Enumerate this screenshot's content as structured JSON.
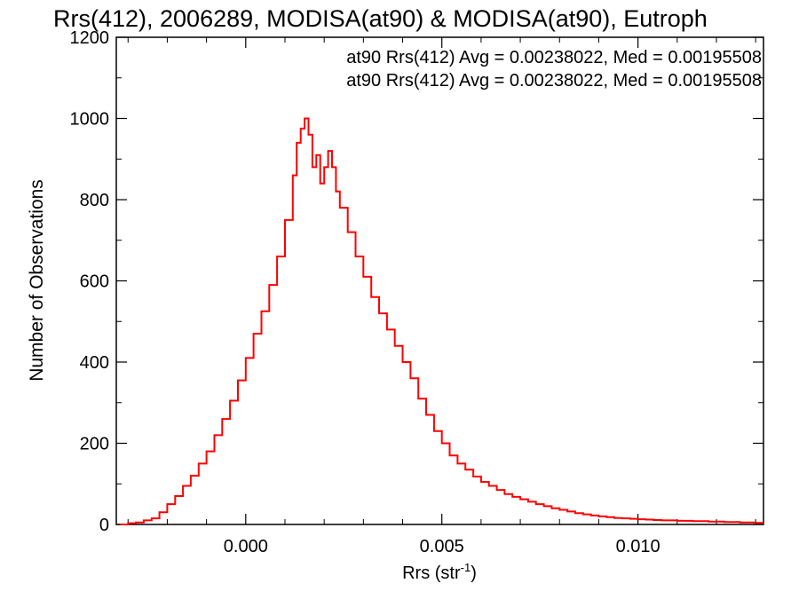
{
  "chart_data": {
    "type": "histogram",
    "title": "Rrs(412), 2006289, MODISA(at90) & MODISA(at90), Eutroph",
    "xlabel_main": "Rrs (str",
    "xlabel_sup": "-1",
    "xlabel_close": ")",
    "ylabel": "Number of Observations",
    "xlim": [
      -0.0033,
      0.0132
    ],
    "ylim": [
      0,
      1200
    ],
    "xticks": [
      0.0,
      0.005,
      0.01
    ],
    "xtick_labels": [
      "0.000",
      "0.005",
      "0.010"
    ],
    "yticks": [
      0,
      200,
      400,
      600,
      800,
      1000,
      1200
    ],
    "ytick_labels": [
      "0",
      "200",
      "400",
      "600",
      "800",
      "1000",
      "1200"
    ],
    "annotations": [
      {
        "text": "at90 Rrs(412) Avg = 0.00238022, Med = 0.00195508",
        "color": "#000000"
      },
      {
        "text": "at90 Rrs(412) Avg = 0.00238022, Med = 0.00195508",
        "color": "#ff0000"
      }
    ],
    "series": [
      {
        "color": "#ff0000",
        "points": [
          [
            -0.0032,
            0
          ],
          [
            -0.003,
            3
          ],
          [
            -0.0028,
            5
          ],
          [
            -0.0026,
            10
          ],
          [
            -0.0024,
            15
          ],
          [
            -0.0022,
            30
          ],
          [
            -0.002,
            50
          ],
          [
            -0.0018,
            70
          ],
          [
            -0.0016,
            95
          ],
          [
            -0.0014,
            120
          ],
          [
            -0.0012,
            150
          ],
          [
            -0.001,
            180
          ],
          [
            -0.0008,
            220
          ],
          [
            -0.0006,
            260
          ],
          [
            -0.0004,
            305
          ],
          [
            -0.0002,
            355
          ],
          [
            0.0,
            410
          ],
          [
            0.0002,
            470
          ],
          [
            0.0004,
            525
          ],
          [
            0.0006,
            590
          ],
          [
            0.0008,
            660
          ],
          [
            0.001,
            750
          ],
          [
            0.0012,
            860
          ],
          [
            0.0013,
            940
          ],
          [
            0.0014,
            975
          ],
          [
            0.0015,
            1000
          ],
          [
            0.0016,
            960
          ],
          [
            0.0017,
            880
          ],
          [
            0.0018,
            910
          ],
          [
            0.0019,
            840
          ],
          [
            0.002,
            880
          ],
          [
            0.0021,
            920
          ],
          [
            0.0022,
            880
          ],
          [
            0.0023,
            820
          ],
          [
            0.0024,
            780
          ],
          [
            0.0026,
            720
          ],
          [
            0.0028,
            660
          ],
          [
            0.003,
            610
          ],
          [
            0.0032,
            560
          ],
          [
            0.0034,
            520
          ],
          [
            0.0036,
            480
          ],
          [
            0.0038,
            440
          ],
          [
            0.004,
            400
          ],
          [
            0.0042,
            360
          ],
          [
            0.0044,
            310
          ],
          [
            0.0046,
            270
          ],
          [
            0.0048,
            230
          ],
          [
            0.005,
            200
          ],
          [
            0.0052,
            170
          ],
          [
            0.0054,
            150
          ],
          [
            0.0056,
            135
          ],
          [
            0.0058,
            118
          ],
          [
            0.006,
            105
          ],
          [
            0.0062,
            95
          ],
          [
            0.0064,
            85
          ],
          [
            0.0066,
            75
          ],
          [
            0.0068,
            68
          ],
          [
            0.007,
            62
          ],
          [
            0.0072,
            56
          ],
          [
            0.0074,
            50
          ],
          [
            0.0076,
            45
          ],
          [
            0.0078,
            40
          ],
          [
            0.008,
            36
          ],
          [
            0.0082,
            32
          ],
          [
            0.0084,
            28
          ],
          [
            0.0086,
            25
          ],
          [
            0.0088,
            22
          ],
          [
            0.009,
            20
          ],
          [
            0.0092,
            18
          ],
          [
            0.0094,
            16
          ],
          [
            0.0096,
            15
          ],
          [
            0.0098,
            14
          ],
          [
            0.01,
            13
          ],
          [
            0.0102,
            12
          ],
          [
            0.0104,
            11
          ],
          [
            0.0106,
            10
          ],
          [
            0.0108,
            10
          ],
          [
            0.011,
            9
          ],
          [
            0.0112,
            9
          ],
          [
            0.0114,
            8
          ],
          [
            0.0116,
            8
          ],
          [
            0.0118,
            7
          ],
          [
            0.012,
            7
          ],
          [
            0.0122,
            6
          ],
          [
            0.0124,
            6
          ],
          [
            0.0126,
            5
          ],
          [
            0.0128,
            5
          ],
          [
            0.013,
            4
          ],
          [
            0.0132,
            4
          ]
        ]
      }
    ]
  }
}
